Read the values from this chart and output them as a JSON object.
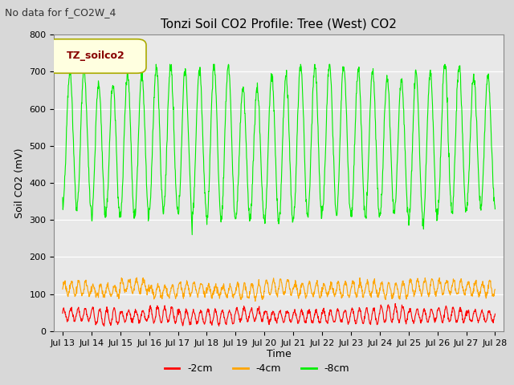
{
  "title": "Tonzi Soil CO2 Profile: Tree (West) CO2",
  "no_data_label": "No data for f_CO2W_4",
  "ylabel": "Soil CO2 (mV)",
  "xlabel": "Time",
  "legend_label": "TZ_soilco2",
  "series_labels": [
    "-2cm",
    "-4cm",
    "-8cm"
  ],
  "series_colors": [
    "#ff0000",
    "#ffa500",
    "#00ee00"
  ],
  "ylim": [
    0,
    800
  ],
  "yticks": [
    0,
    100,
    200,
    300,
    400,
    500,
    600,
    700,
    800
  ],
  "xtick_labels": [
    "Jul 13",
    "Jul 14",
    "Jul 15",
    "Jul 16",
    "Jul 17",
    "Jul 18",
    "Jul 19",
    "Jul 20",
    "Jul 21",
    "Jul 22",
    "Jul 23",
    "Jul 24",
    "Jul 25",
    "Jul 26",
    "Jul 27",
    "Jul 28"
  ],
  "bg_color": "#d8d8d8",
  "plot_bg_color": "#e8e8e8",
  "legend_box_color": "#ffffe0",
  "legend_box_edge": "#aaaa00",
  "legend_text_color": "#880000",
  "num_days": 15,
  "pts_per_day": 96,
  "no_data_fontsize": 9,
  "title_fontsize": 11,
  "axis_fontsize": 9,
  "tick_fontsize": 8
}
